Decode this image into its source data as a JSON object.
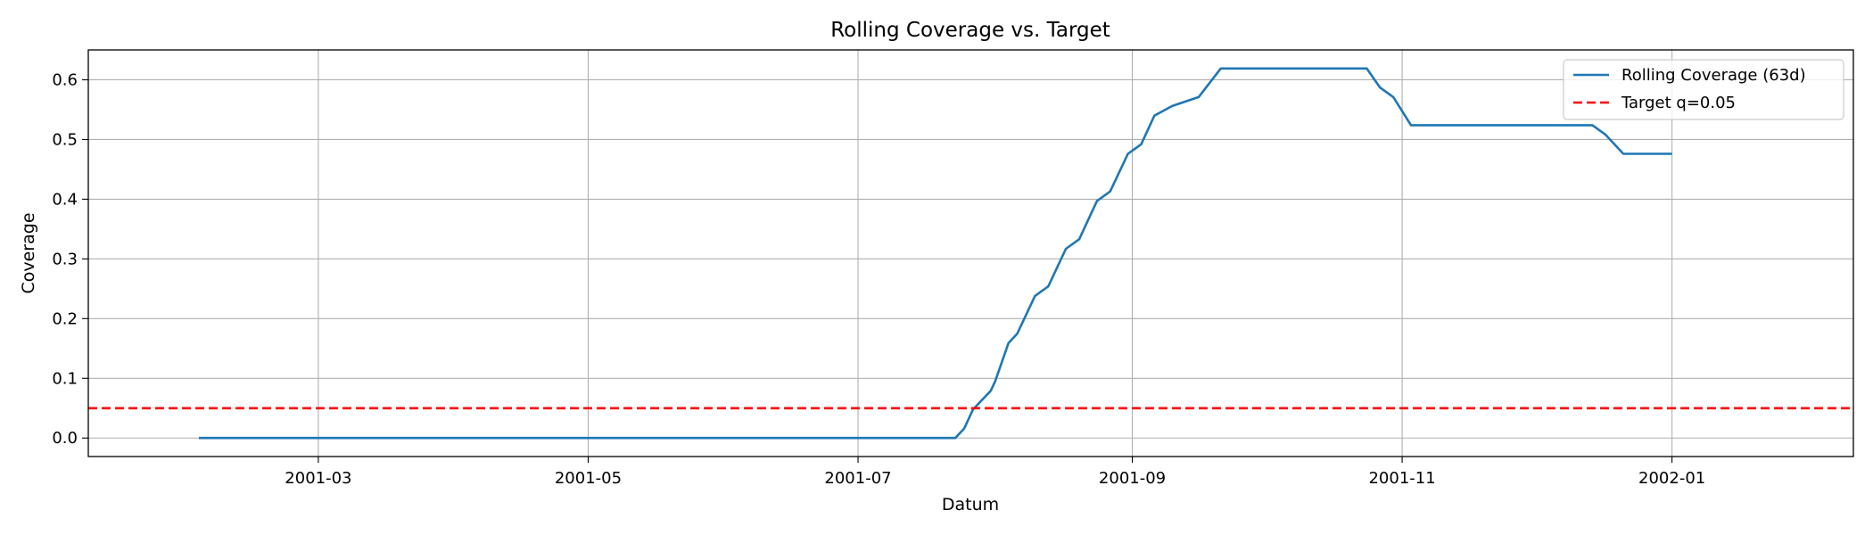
{
  "chart_data": {
    "type": "line",
    "title": "Rolling Coverage vs. Target",
    "xlabel": "Datum",
    "ylabel": "Coverage",
    "xlim": [
      "2001-01-08",
      "2002-02-11"
    ],
    "ylim": [
      -0.031,
      0.65
    ],
    "x_ticks": [
      {
        "value": "2001-03-01",
        "label": "2001-03"
      },
      {
        "value": "2001-05-01",
        "label": "2001-05"
      },
      {
        "value": "2001-07-01",
        "label": "2001-07"
      },
      {
        "value": "2001-09-01",
        "label": "2001-09"
      },
      {
        "value": "2001-11-01",
        "label": "2001-11"
      },
      {
        "value": "2002-01-01",
        "label": "2002-01"
      }
    ],
    "y_ticks": [
      {
        "value": 0.0,
        "label": "0.0"
      },
      {
        "value": 0.1,
        "label": "0.1"
      },
      {
        "value": 0.2,
        "label": "0.2"
      },
      {
        "value": 0.3,
        "label": "0.3"
      },
      {
        "value": 0.4,
        "label": "0.4"
      },
      {
        "value": 0.5,
        "label": "0.5"
      },
      {
        "value": 0.6,
        "label": "0.6"
      }
    ],
    "grid": true,
    "legend_position": "top-right",
    "series": [
      {
        "name": "Rolling Coverage (63d)",
        "color": "#1f77b4",
        "style": "solid",
        "points": [
          [
            "2001-02-02",
            0.0
          ],
          [
            "2001-07-23",
            0.0
          ],
          [
            "2001-07-25",
            0.016
          ],
          [
            "2001-07-27",
            0.048
          ],
          [
            "2001-07-31",
            0.079
          ],
          [
            "2001-08-01",
            0.095
          ],
          [
            "2001-08-04",
            0.159
          ],
          [
            "2001-08-06",
            0.175
          ],
          [
            "2001-08-10",
            0.238
          ],
          [
            "2001-08-13",
            0.254
          ],
          [
            "2001-08-17",
            0.317
          ],
          [
            "2001-08-20",
            0.333
          ],
          [
            "2001-08-24",
            0.397
          ],
          [
            "2001-08-27",
            0.413
          ],
          [
            "2001-08-31",
            0.476
          ],
          [
            "2001-09-03",
            0.492
          ],
          [
            "2001-09-06",
            0.54
          ],
          [
            "2001-09-10",
            0.556
          ],
          [
            "2001-09-16",
            0.571
          ],
          [
            "2001-09-21",
            0.619
          ],
          [
            "2001-10-24",
            0.619
          ],
          [
            "2001-10-27",
            0.587
          ],
          [
            "2001-10-30",
            0.571
          ],
          [
            "2001-11-03",
            0.524
          ],
          [
            "2001-12-14",
            0.524
          ],
          [
            "2001-12-17",
            0.508
          ],
          [
            "2001-12-21",
            0.476
          ],
          [
            "2002-01-01",
            0.476
          ]
        ]
      },
      {
        "name": "Target q=0.05",
        "color": "#ff0000",
        "style": "dashed",
        "points": [
          [
            "2001-01-08",
            0.05
          ],
          [
            "2002-02-11",
            0.05
          ]
        ]
      }
    ]
  }
}
